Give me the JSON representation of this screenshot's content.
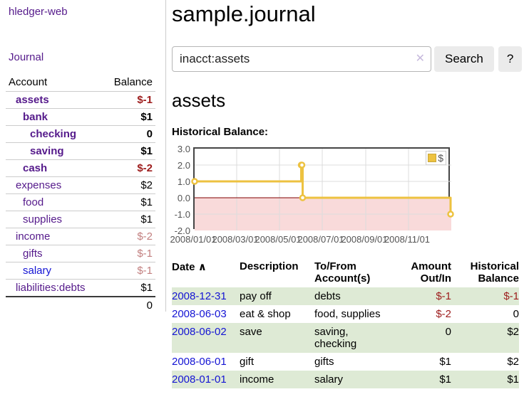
{
  "sidebar": {
    "brand": "hledger-web",
    "nav": {
      "journal_label": "Journal"
    },
    "accounts_table": {
      "headers": {
        "account": "Account",
        "balance": "Balance"
      },
      "rows": [
        {
          "name": "assets",
          "depth": 0,
          "bold": true,
          "balance": "$-1",
          "negative": "strong",
          "link_color": "purple"
        },
        {
          "name": "bank",
          "depth": 1,
          "bold": true,
          "balance": "$1",
          "negative": "none",
          "link_color": "purple"
        },
        {
          "name": "checking",
          "depth": 2,
          "bold": true,
          "balance": "0",
          "negative": "none",
          "link_color": "purple"
        },
        {
          "name": "saving",
          "depth": 2,
          "bold": true,
          "balance": "$1",
          "negative": "none",
          "link_color": "purple"
        },
        {
          "name": "cash",
          "depth": 1,
          "bold": true,
          "balance": "$-2",
          "negative": "strong",
          "link_color": "purple"
        },
        {
          "name": "expenses",
          "depth": 0,
          "bold": false,
          "balance": "$2",
          "negative": "none",
          "link_color": "purple"
        },
        {
          "name": "food",
          "depth": 1,
          "bold": false,
          "balance": "$1",
          "negative": "none",
          "link_color": "purple"
        },
        {
          "name": "supplies",
          "depth": 1,
          "bold": false,
          "balance": "$1",
          "negative": "none",
          "link_color": "purple"
        },
        {
          "name": "income",
          "depth": 0,
          "bold": false,
          "balance": "$-2",
          "negative": "faded",
          "link_color": "purple"
        },
        {
          "name": "gifts",
          "depth": 1,
          "bold": false,
          "balance": "$-1",
          "negative": "faded",
          "link_color": "purple"
        },
        {
          "name": "salary",
          "depth": 1,
          "bold": false,
          "balance": "$-1",
          "negative": "faded",
          "link_color": "blue"
        },
        {
          "name": "liabilities:debts",
          "depth": 0,
          "bold": false,
          "balance": "$1",
          "negative": "none",
          "link_color": "purple"
        }
      ],
      "total": "0"
    }
  },
  "main": {
    "title": "sample.journal",
    "search": {
      "value": "inacct:assets",
      "clear_icon": "✕",
      "search_button_label": "Search",
      "help_button_label": "?"
    },
    "account_heading": "assets",
    "chart_label": "Historical Balance:",
    "register": {
      "headers": {
        "date": "Date",
        "sort_icon": "∧",
        "description": "Description",
        "accounts": "To/From Account(s)",
        "amount": "Amount Out/In",
        "balance": "Historical Balance"
      },
      "rows": [
        {
          "date": "2008-12-31",
          "description": "pay off",
          "accounts": "debts",
          "amount": "$-1",
          "amount_negative": true,
          "balance": "$-1",
          "balance_negative": true
        },
        {
          "date": "2008-06-03",
          "description": "eat & shop",
          "accounts": "food, supplies",
          "amount": "$-2",
          "amount_negative": true,
          "balance": "0",
          "balance_negative": false
        },
        {
          "date": "2008-06-02",
          "description": "save",
          "accounts": "saving, checking",
          "amount": "0",
          "amount_negative": false,
          "balance": "$2",
          "balance_negative": false
        },
        {
          "date": "2008-06-01",
          "description": "gift",
          "accounts": "gifts",
          "amount": "$1",
          "amount_negative": false,
          "balance": "$2",
          "balance_negative": false
        },
        {
          "date": "2008-01-01",
          "description": "income",
          "accounts": "salary",
          "amount": "$1",
          "amount_negative": false,
          "balance": "$1",
          "balance_negative": false
        }
      ]
    }
  },
  "chart_data": {
    "type": "line",
    "step": true,
    "title": "Historical Balance of assets",
    "series": [
      {
        "name": "$",
        "color": "#edc240",
        "points": [
          [
            "2008-01-01",
            1
          ],
          [
            "2008-06-01",
            2
          ],
          [
            "2008-06-02",
            2
          ],
          [
            "2008-06-03",
            0
          ],
          [
            "2008-12-31",
            -1
          ]
        ]
      }
    ],
    "xlim": [
      "2008-01-01",
      "2009-01-01"
    ],
    "ylim": [
      -2,
      3
    ],
    "y_ticks": [
      "3.0",
      "2.0",
      "1.0",
      "0.0",
      "-1.0",
      "-2.0"
    ],
    "x_ticks": [
      "2008/01/01",
      "2008/03/01",
      "2008/05/01",
      "2008/07/01",
      "2008/09/01",
      "2008/11/01"
    ],
    "grid": true,
    "gridline_color": "#dcdcdc",
    "zero_line_color": "#800000",
    "negative_region_color": "#f9dada",
    "marker_fill": "#ffffff",
    "legend": {
      "label": "$",
      "position": "top-right"
    }
  }
}
